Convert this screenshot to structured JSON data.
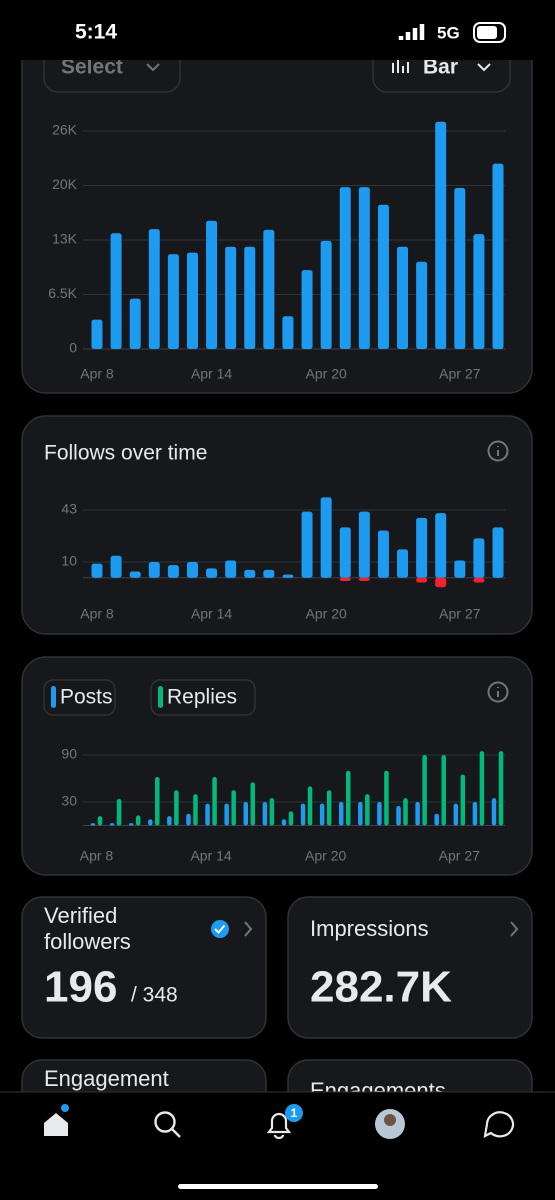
{
  "status_bar": {
    "time": "5:14",
    "network": "5G"
  },
  "controls": {
    "select": "Select",
    "view": "Bar"
  },
  "chart_data": [
    {
      "type": "bar",
      "categories": [
        "Apr 8",
        null,
        null,
        null,
        null,
        null,
        "Apr 14",
        null,
        null,
        null,
        null,
        null,
        "Apr 20",
        null,
        null,
        null,
        null,
        null,
        null,
        "Apr 27",
        null,
        null
      ],
      "values": [
        3500,
        13800,
        6000,
        14300,
        11300,
        11500,
        15300,
        12200,
        12200,
        14200,
        3900,
        9400,
        12900,
        19300,
        19300,
        17200,
        12200,
        10400,
        27100,
        19200,
        13700,
        22100
      ],
      "color": "#1d9bf0",
      "ylim": [
        0,
        27500
      ],
      "yticks": [
        0,
        {
          "value": 6500,
          "label": "6.5K"
        },
        {
          "value": 13000,
          "label": "13K"
        },
        {
          "value": 19500,
          "label": "20K"
        },
        {
          "value": 26000,
          "label": "26K"
        }
      ],
      "grid": true
    },
    {
      "type": "bar",
      "title": "Follows over time",
      "categories": [
        "Apr 8",
        null,
        null,
        null,
        null,
        null,
        "Apr 14",
        null,
        null,
        null,
        null,
        null,
        "Apr 20",
        null,
        null,
        null,
        null,
        null,
        null,
        "Apr 27",
        null,
        null
      ],
      "series": [
        {
          "color": "#1d9bf0",
          "values": [
            9,
            14,
            4,
            10,
            8,
            10,
            6,
            11,
            5,
            5,
            2,
            42,
            51,
            32,
            42,
            30,
            18,
            38,
            41,
            11,
            25,
            32
          ]
        },
        {
          "color": "#f4212e",
          "values": [
            null,
            null,
            null,
            null,
            null,
            null,
            null,
            null,
            null,
            null,
            null,
            null,
            null,
            -2,
            -2,
            null,
            null,
            -3,
            -6,
            null,
            -3,
            null
          ]
        }
      ],
      "ylim": [
        -8,
        55
      ],
      "yticks": [
        10,
        43
      ],
      "grid": true
    },
    {
      "type": "bar",
      "categories": [
        "Apr 8",
        null,
        null,
        null,
        null,
        null,
        "Apr 14",
        null,
        null,
        null,
        null,
        null,
        "Apr 20",
        null,
        null,
        null,
        null,
        null,
        null,
        "Apr 27",
        null,
        null
      ],
      "series": [
        {
          "name": "Posts",
          "color": "#1d9bf0",
          "values": [
            3,
            3,
            3,
            8,
            12,
            15,
            28,
            28,
            30,
            30,
            8,
            28,
            28,
            30,
            30,
            30,
            25,
            30,
            15,
            28,
            30,
            35
          ]
        },
        {
          "name": "Replies",
          "color": "#00ba7c",
          "values": [
            12,
            34,
            13,
            62,
            45,
            40,
            62,
            45,
            55,
            35,
            18,
            50,
            45,
            70,
            40,
            70,
            35,
            90,
            90,
            65,
            95,
            95
          ]
        }
      ],
      "ylim": [
        0,
        100
      ],
      "yticks": [
        30,
        90
      ],
      "grid": true
    }
  ],
  "stats": [
    {
      "label": "Verified followers",
      "value": "196",
      "total": "/ 348"
    },
    {
      "label": "Impressions",
      "value": "282.7K"
    },
    {
      "label": "Engagement"
    },
    {
      "label": "Engagements"
    }
  ],
  "nav": {
    "notification_badge": "1"
  }
}
